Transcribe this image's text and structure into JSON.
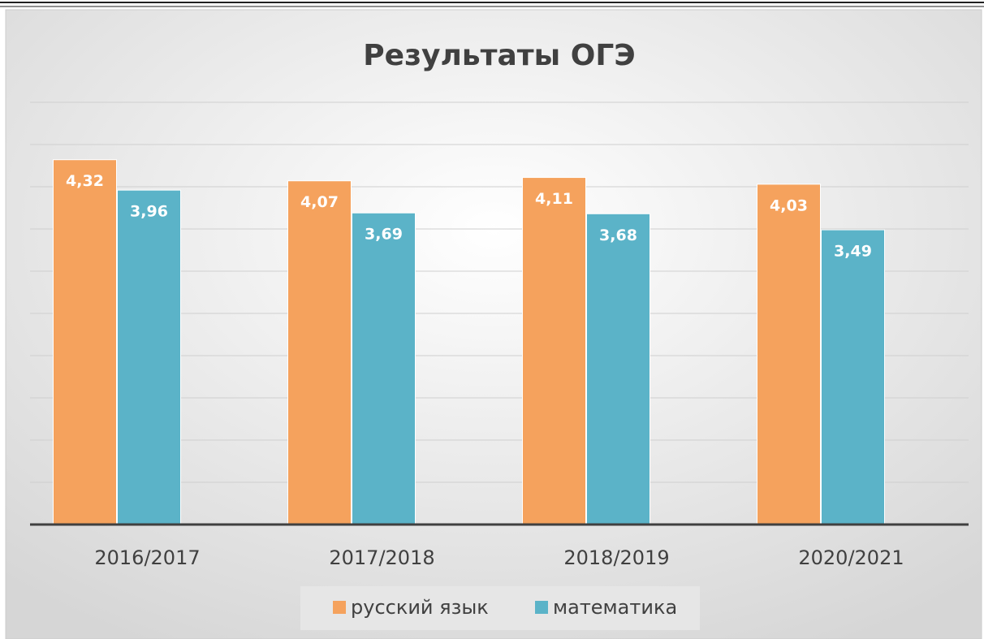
{
  "chart_data": {
    "type": "bar",
    "title": "Результаты ОГЭ",
    "categories": [
      "2016/2017",
      "2017/2018",
      "2018/2019",
      "2020/2021"
    ],
    "series": [
      {
        "name": "русский язык",
        "color": "#f5a25d",
        "values": [
          4.32,
          4.07,
          4.11,
          4.03
        ],
        "value_labels": [
          "4,32",
          "4,07",
          "4,11",
          "4,03"
        ]
      },
      {
        "name": "математика",
        "color": "#5bb3c8",
        "values": [
          3.96,
          3.69,
          3.68,
          3.49
        ],
        "value_labels": [
          "3,96",
          "3,69",
          "3,68",
          "3,49"
        ]
      }
    ],
    "ylim": [
      0,
      5
    ],
    "yticks": [
      0,
      0.5,
      1,
      1.5,
      2,
      2.5,
      3,
      3.5,
      4,
      4.5,
      5
    ],
    "grid": true,
    "legend": "bottom"
  }
}
